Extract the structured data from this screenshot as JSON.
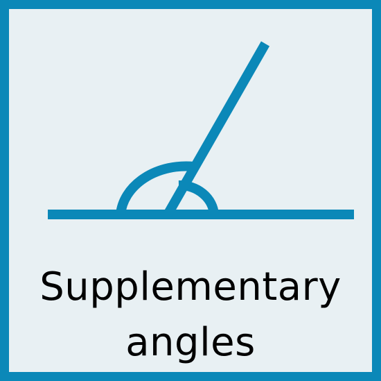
{
  "colors": {
    "border": "#0b88b8",
    "background": "#e8f0f3",
    "stroke": "#0b88b8",
    "text": "#000000"
  },
  "icon": "supplementary-angles-icon",
  "caption": {
    "line1": "Supplementary",
    "line2": "angles"
  }
}
